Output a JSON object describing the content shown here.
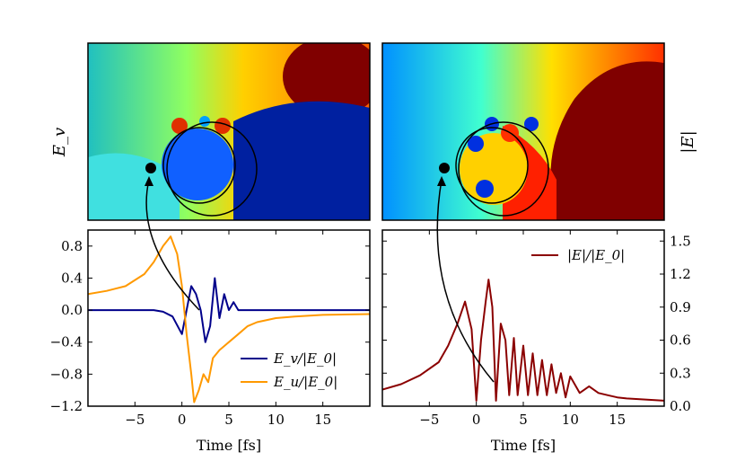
{
  "chart_data": [
    {
      "type": "heatmap",
      "name": "top-left-field",
      "side_label": "E_v",
      "colormap": "jet",
      "marker": "source-point",
      "annotation": "arrow-from-point-to-lower-plot"
    },
    {
      "type": "heatmap",
      "name": "top-right-field",
      "side_label": "|E|",
      "colormap": "jet",
      "marker": "source-point",
      "annotation": "arrow-from-point-to-lower-plot"
    },
    {
      "type": "line",
      "name": "bottom-left-plot",
      "xlabel": "Time [fs]",
      "ylabel": "",
      "xlim": [
        -10,
        20
      ],
      "ylim": [
        -1.2,
        1.0
      ],
      "xticks": [
        -5,
        0,
        5,
        10,
        15
      ],
      "xtick_labels": [
        "−5",
        "0",
        "5",
        "10",
        "15"
      ],
      "yticks": [
        -1.2,
        -0.8,
        -0.4,
        0.0,
        0.4,
        0.8
      ],
      "ytick_labels": [
        "−1.2",
        "−0.8",
        "−0.4",
        "0.0",
        "0.4",
        "0.8"
      ],
      "legend_position": "lower-right",
      "series": [
        {
          "name": "E_v/|E_0|",
          "color": "#00008b",
          "points": [
            [
              -10,
              0.0
            ],
            [
              -3,
              0.0
            ],
            [
              -2,
              -0.02
            ],
            [
              -1,
              -0.08
            ],
            [
              0,
              -0.3
            ],
            [
              0.5,
              0.0
            ],
            [
              1,
              0.3
            ],
            [
              1.5,
              0.2
            ],
            [
              2,
              0.0
            ],
            [
              2.5,
              -0.4
            ],
            [
              3,
              -0.2
            ],
            [
              3.5,
              0.4
            ],
            [
              4,
              -0.1
            ],
            [
              4.5,
              0.2
            ],
            [
              5,
              0.0
            ],
            [
              5.5,
              0.1
            ],
            [
              6,
              0.0
            ],
            [
              7,
              0.0
            ],
            [
              8,
              0.0
            ],
            [
              10,
              0.0
            ],
            [
              12,
              0.0
            ],
            [
              14,
              0.0
            ],
            [
              20,
              0.0
            ]
          ]
        },
        {
          "name": "E_u/|E_0|",
          "color": "#ff9900",
          "points": [
            [
              -10,
              0.2
            ],
            [
              -8,
              0.24
            ],
            [
              -6,
              0.3
            ],
            [
              -4,
              0.45
            ],
            [
              -3,
              0.6
            ],
            [
              -2,
              0.8
            ],
            [
              -1.2,
              0.92
            ],
            [
              -0.5,
              0.7
            ],
            [
              0,
              0.3
            ],
            [
              0.5,
              -0.3
            ],
            [
              1,
              -0.8
            ],
            [
              1.3,
              -1.15
            ],
            [
              1.8,
              -1.0
            ],
            [
              2.3,
              -0.8
            ],
            [
              2.8,
              -0.9
            ],
            [
              3.3,
              -0.6
            ],
            [
              4,
              -0.5
            ],
            [
              5,
              -0.4
            ],
            [
              6,
              -0.3
            ],
            [
              7,
              -0.2
            ],
            [
              8,
              -0.15
            ],
            [
              10,
              -0.1
            ],
            [
              12,
              -0.08
            ],
            [
              15,
              -0.06
            ],
            [
              20,
              -0.05
            ]
          ]
        }
      ]
    },
    {
      "type": "line",
      "name": "bottom-right-plot",
      "xlabel": "Time [fs]",
      "ylabel": "",
      "xlim": [
        -10,
        20
      ],
      "ylim": [
        0.0,
        1.6
      ],
      "xticks": [
        -5,
        0,
        5,
        10,
        15
      ],
      "xtick_labels": [
        "−5",
        "0",
        "5",
        "10",
        "15"
      ],
      "yticks": [
        0.0,
        0.3,
        0.6,
        0.9,
        1.2,
        1.5
      ],
      "ytick_labels": [
        "0.0",
        "0.3",
        "0.6",
        "0.9",
        "1.2",
        "1.5"
      ],
      "legend_position": "upper-right",
      "series": [
        {
          "name": "|E|/|E_0|",
          "color": "#8b0000",
          "points": [
            [
              -10,
              0.15
            ],
            [
              -8,
              0.2
            ],
            [
              -6,
              0.28
            ],
            [
              -4,
              0.4
            ],
            [
              -3,
              0.55
            ],
            [
              -2,
              0.75
            ],
            [
              -1.2,
              0.95
            ],
            [
              -0.5,
              0.7
            ],
            [
              0,
              0.05
            ],
            [
              0.5,
              0.6
            ],
            [
              1,
              0.95
            ],
            [
              1.3,
              1.15
            ],
            [
              1.7,
              0.9
            ],
            [
              2.1,
              0.05
            ],
            [
              2.6,
              0.75
            ],
            [
              3.1,
              0.6
            ],
            [
              3.5,
              0.1
            ],
            [
              4,
              0.62
            ],
            [
              4.4,
              0.1
            ],
            [
              5,
              0.55
            ],
            [
              5.5,
              0.1
            ],
            [
              6,
              0.48
            ],
            [
              6.5,
              0.1
            ],
            [
              7,
              0.42
            ],
            [
              7.5,
              0.1
            ],
            [
              8,
              0.38
            ],
            [
              8.5,
              0.12
            ],
            [
              9,
              0.3
            ],
            [
              9.5,
              0.08
            ],
            [
              10,
              0.27
            ],
            [
              11,
              0.12
            ],
            [
              12,
              0.18
            ],
            [
              13,
              0.12
            ],
            [
              14,
              0.1
            ],
            [
              15,
              0.08
            ],
            [
              16,
              0.07
            ],
            [
              18,
              0.06
            ],
            [
              20,
              0.05
            ]
          ]
        }
      ]
    }
  ],
  "legend": {
    "left_series_1": "E_v/|E_0|",
    "left_series_2": "E_u/|E_0|",
    "right_series_1": "|E|/|E_0|"
  },
  "labels": {
    "top_left_side": "E_v",
    "top_right_side": "|E|",
    "xlabel_left": "Time [fs]",
    "xlabel_right": "Time [fs]"
  }
}
